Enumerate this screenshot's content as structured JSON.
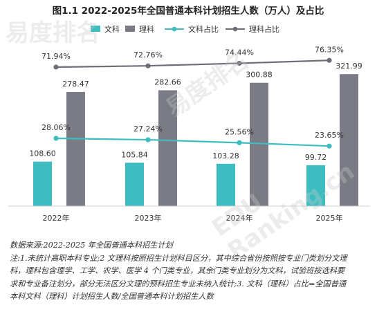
{
  "chart_data": {
    "type": "bar",
    "title": "图1.1 2022-2025年全国普通本科计划招生人数（万人）及占比",
    "categories": [
      "2022年",
      "2023年",
      "2024年",
      "2025年"
    ],
    "series": [
      {
        "name": "文科",
        "type": "bar",
        "values": [
          108.6,
          105.84,
          103.28,
          99.72
        ],
        "labels": [
          "108.60",
          "105.84",
          "103.28",
          "99.72"
        ],
        "color": "#3dbdc0"
      },
      {
        "name": "理科",
        "type": "bar",
        "values": [
          278.47,
          282.66,
          300.88,
          321.99
        ],
        "labels": [
          "278.47",
          "282.66",
          "300.88",
          "321.99"
        ],
        "color": "#7a7b85"
      },
      {
        "name": "文科占比",
        "type": "line",
        "values": [
          28.06,
          27.24,
          25.56,
          23.65
        ],
        "labels": [
          "28.06%",
          "27.24%",
          "25.56%",
          "23.65%"
        ],
        "color": "#3dbdc0"
      },
      {
        "name": "理科占比",
        "type": "line",
        "values": [
          71.94,
          72.76,
          74.44,
          76.35
        ],
        "labels": [
          "71.94%",
          "72.76%",
          "74.44%",
          "76.35%"
        ],
        "color": "#6e6e78"
      }
    ],
    "legend": "top-center",
    "grid": false
  },
  "watermark": [
    "易度排名",
    "EDU Ranking.cn"
  ],
  "notes": {
    "source": "数据来源:2022-2025 年全国普通本科招生计划",
    "lines": [
      "注:1.未统计高职本科专业;2 文理科按照招生计划科目区分，其中综合省份按照按专业门类划分文理",
      "科，理科包含理学、工学、农学、医学 4 个门类专业，其余门类专业划分为文科，试验班按选科要",
      "求和专业备注划分，部分无法区分文理的预科招生专业未纳入统计;3. 文科（理科）占比=全国普通",
      "本科文科（理科）计划招生人数/全国普通本科计划招生人数"
    ]
  }
}
